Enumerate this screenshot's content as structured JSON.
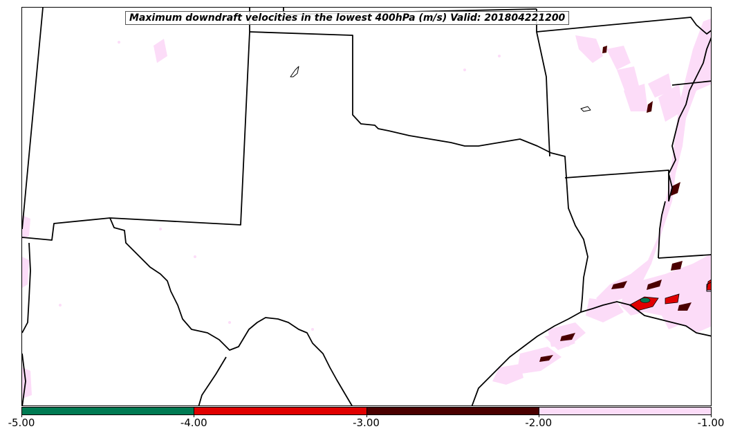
{
  "title": "Maximum downdraft velocities in the lowest 400hPa (m/s) Valid: 201804221200",
  "colorbar": {
    "segments": [
      {
        "range": "-5.00 to -4.00",
        "color": "#007a52"
      },
      {
        "range": "-4.00 to -3.00",
        "color": "#e00000"
      },
      {
        "range": "-3.00 to -2.00",
        "color": "#4a0000"
      },
      {
        "range": "-2.00 to -1.00",
        "color": "#fcdcf8"
      }
    ],
    "ticks": [
      "-5.00",
      "-4.00",
      "-3.00",
      "-2.00",
      "-1.00"
    ]
  }
}
